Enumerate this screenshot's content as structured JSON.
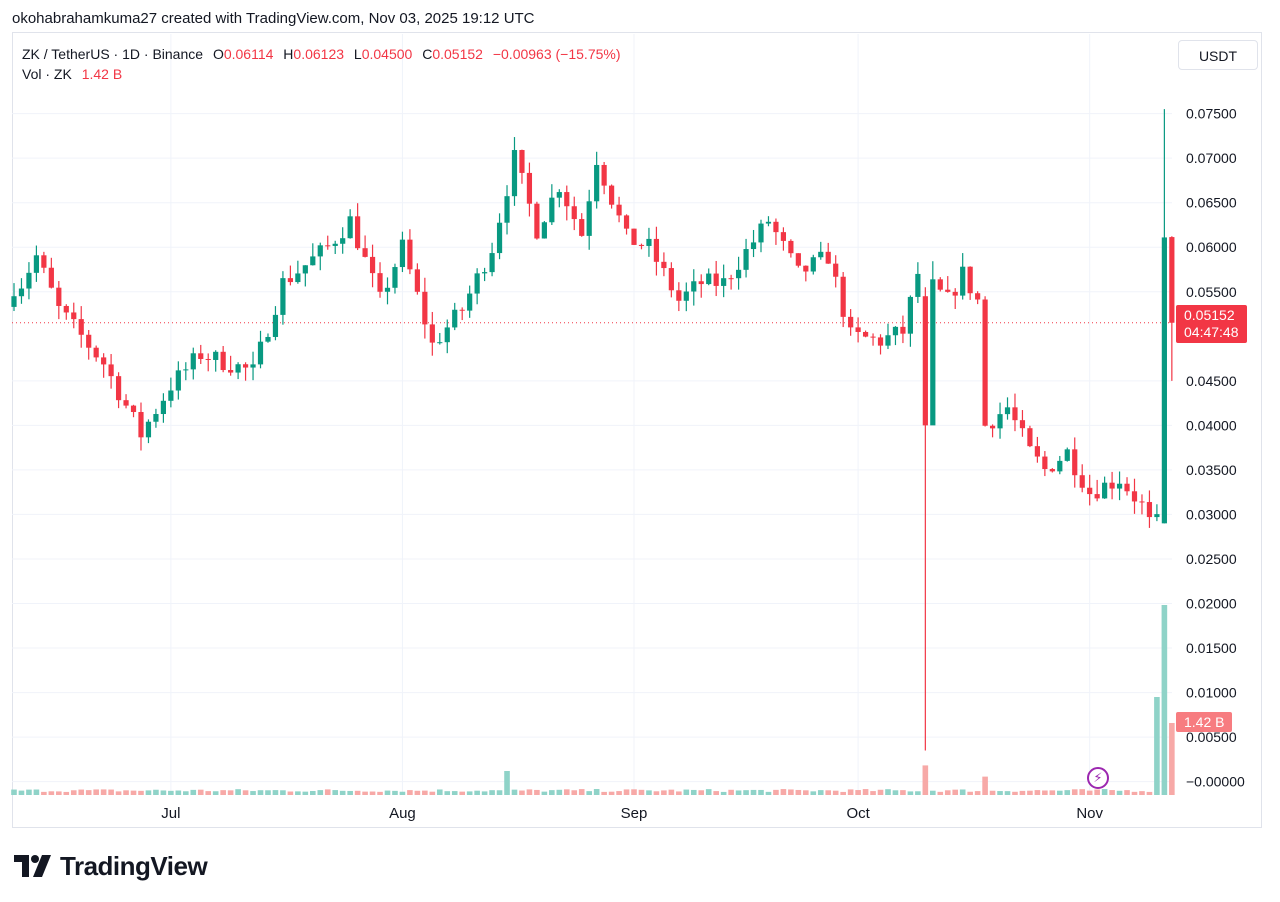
{
  "header": {
    "text": "okohabrahamkuma27 created with TradingView.com, Nov 03, 2025 19:12 UTC"
  },
  "legend": {
    "symbol": "ZK / TetherUS · 1D · Binance",
    "o_label": "O",
    "o_value": "0.06114",
    "h_label": "H",
    "h_value": "0.06123",
    "l_label": "L",
    "l_value": "0.04500",
    "c_label": "C",
    "c_value": "0.05152",
    "change": "−0.00963 (−15.75%)",
    "vol_label": "Vol · ZK",
    "vol_value": "1.42 B"
  },
  "currency": "USDT",
  "price_tag": {
    "price": "0.05152",
    "countdown": "04:47:48"
  },
  "volume_tag": "1.42 B",
  "brand": "TradingView",
  "colors": {
    "up": "#089981",
    "down": "#f23645",
    "vol_up": "#8fd3c8",
    "vol_down": "#f7a9a7",
    "grid": "#f0f3fa"
  },
  "chart_data": {
    "type": "candlestick",
    "y_axis": {
      "min": -0.0015,
      "max": 0.079,
      "ticks": [
        0.075,
        0.07,
        0.065,
        0.06,
        0.055,
        0.045,
        0.04,
        0.035,
        0.03,
        0.025,
        0.02,
        0.015,
        0.01,
        0.005,
        0
      ],
      "tick_labels": [
        "0.07500",
        "0.07000",
        "0.06500",
        "0.06000",
        "0.05500",
        "0.04500",
        "0.04000",
        "0.03500",
        "0.03000",
        "0.02500",
        "0.02000",
        "0.01500",
        "0.01000",
        "0.00500",
        "−0.00000"
      ]
    },
    "x_axis": {
      "labels": [
        "Jul",
        "Aug",
        "Sep",
        "Oct",
        "Nov"
      ]
    },
    "last_price": 0.05152,
    "current_volume": "1.42 B",
    "keypoints": [
      {
        "date": "Jun 10",
        "close": 0.0545
      },
      {
        "date": "Jun 13",
        "close": 0.059
      },
      {
        "date": "Jun 16",
        "close": 0.053
      },
      {
        "date": "Jun 22",
        "close": 0.047
      },
      {
        "date": "Jun 27",
        "close": 0.039
      },
      {
        "date": "Jul 1",
        "close": 0.0445
      },
      {
        "date": "Jul 5",
        "close": 0.048
      },
      {
        "date": "Jul 12",
        "close": 0.046
      },
      {
        "date": "Jul 16",
        "close": 0.056
      },
      {
        "date": "Jul 22",
        "close": 0.06
      },
      {
        "date": "Jul 25",
        "close": 0.063
      },
      {
        "date": "Jul 29",
        "close": 0.054
      },
      {
        "date": "Aug 1",
        "close": 0.06
      },
      {
        "date": "Aug 5",
        "close": 0.049
      },
      {
        "date": "Aug 9",
        "close": 0.053
      },
      {
        "date": "Aug 13",
        "close": 0.06
      },
      {
        "date": "Aug 16",
        "close": 0.07
      },
      {
        "date": "Aug 19",
        "close": 0.062
      },
      {
        "date": "Aug 22",
        "close": 0.067
      },
      {
        "date": "Aug 25",
        "close": 0.0615
      },
      {
        "date": "Aug 27",
        "close": 0.07
      },
      {
        "date": "Aug 31",
        "close": 0.061
      },
      {
        "date": "Sep 3",
        "close": 0.06
      },
      {
        "date": "Sep 7",
        "close": 0.054
      },
      {
        "date": "Sep 10",
        "close": 0.056
      },
      {
        "date": "Sep 13",
        "close": 0.056
      },
      {
        "date": "Sep 19",
        "close": 0.063
      },
      {
        "date": "Sep 23",
        "close": 0.057
      },
      {
        "date": "Sep 27",
        "close": 0.059
      },
      {
        "date": "Sep 30",
        "close": 0.05
      },
      {
        "date": "Oct 4",
        "close": 0.0495
      },
      {
        "date": "Oct 7",
        "close": 0.0505
      },
      {
        "date": "Oct 9",
        "close": 0.057
      },
      {
        "date": "Oct 13",
        "close": 0.054
      },
      {
        "date": "Oct 15",
        "close": 0.057
      },
      {
        "date": "Oct 17",
        "close": 0.054
      },
      {
        "date": "Oct 18",
        "close": 0.04
      },
      {
        "date": "Oct 21",
        "close": 0.042
      },
      {
        "date": "Oct 24",
        "close": 0.037
      },
      {
        "date": "Oct 26",
        "close": 0.035
      },
      {
        "date": "Oct 29",
        "close": 0.037
      },
      {
        "date": "Nov 1",
        "close": 0.0325
      },
      {
        "date": "Nov 5",
        "close": 0.034
      },
      {
        "date": "Nov 8",
        "close": 0.031
      },
      {
        "date": "Nov 9",
        "close": 0.029
      },
      {
        "date": "Nov 10",
        "close": 0.029
      },
      {
        "date": "Nov 11",
        "close": 0.06
      },
      {
        "date": "Nov 12",
        "close": 0.0515
      }
    ],
    "notable_candles": [
      {
        "date": "Oct 10",
        "open": 0.0545,
        "high": 0.0555,
        "low": 0.0035,
        "close": 0.04
      },
      {
        "date": "Nov 11",
        "open": 0.029,
        "high": 0.0755,
        "low": 0.029,
        "close": 0.0611
      },
      {
        "date": "Nov 12",
        "open": 0.06114,
        "high": 0.06123,
        "low": 0.045,
        "close": 0.05152
      }
    ]
  }
}
